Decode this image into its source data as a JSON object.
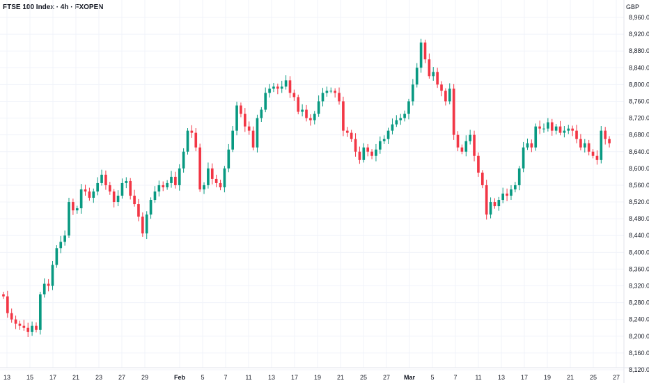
{
  "header": {
    "title": "FTSE 100 Index · 4h · FXOPEN",
    "currency": "GBP"
  },
  "colors": {
    "up": "#089981",
    "down": "#f23645",
    "grid": "#f0f3fa",
    "text": "#131722",
    "axis": "#e0e3eb"
  },
  "chart_data": {
    "type": "candlestick",
    "title": "FTSE 100 Index · 4h · FXOPEN",
    "y_unit": "GBP",
    "y_range": [
      8120,
      8960
    ],
    "y_ticks": [
      "8,960.0",
      "8,920.0",
      "8,880.0",
      "8,840.0",
      "8,800.0",
      "8,760.0",
      "8,720.0",
      "8,680.0",
      "8,640.0",
      "8,600.0",
      "8,560.0",
      "8,520.0",
      "8,480.0",
      "8,440.0",
      "8,400.0",
      "8,360.0",
      "8,320.0",
      "8,280.0",
      "8,240.0",
      "8,200.0",
      "8,160.0",
      "8,120.0"
    ],
    "x_ticks": [
      "13",
      "15",
      "17",
      "21",
      "23",
      "27",
      "29",
      "Feb",
      "5",
      "7",
      "11",
      "13",
      "17",
      "19",
      "21",
      "25",
      "27",
      "Mar",
      "5",
      "7",
      "11",
      "13",
      "17",
      "19",
      "21",
      "25",
      "27"
    ],
    "closes": [
      8295,
      8255,
      8240,
      8230,
      8225,
      8220,
      8210,
      8225,
      8215,
      8300,
      8325,
      8320,
      8370,
      8410,
      8425,
      8440,
      8520,
      8500,
      8505,
      8550,
      8545,
      8530,
      8545,
      8565,
      8585,
      8560,
      8545,
      8520,
      8535,
      8565,
      8570,
      8535,
      8515,
      8485,
      8445,
      8490,
      8525,
      8545,
      8560,
      8555,
      8565,
      8580,
      8560,
      8600,
      8640,
      8690,
      8685,
      8650,
      8550,
      8560,
      8600,
      8575,
      8565,
      8555,
      8600,
      8645,
      8690,
      8750,
      8730,
      8700,
      8690,
      8650,
      8720,
      8740,
      8780,
      8790,
      8795,
      8790,
      8795,
      8810,
      8780,
      8770,
      8735,
      8740,
      8720,
      8715,
      8730,
      8760,
      8780,
      8785,
      8785,
      8780,
      8760,
      8690,
      8685,
      8670,
      8640,
      8620,
      8650,
      8640,
      8630,
      8645,
      8665,
      8670,
      8690,
      8705,
      8715,
      8720,
      8730,
      8760,
      8800,
      8840,
      8900,
      8860,
      8820,
      8830,
      8800,
      8785,
      8760,
      8790,
      8680,
      8650,
      8640,
      8665,
      8680,
      8630,
      8590,
      8560,
      8490,
      8520,
      8510,
      8525,
      8540,
      8535,
      8550,
      8560,
      8600,
      8650,
      8660,
      8650,
      8700,
      8695,
      8695,
      8710,
      8690,
      8700,
      8685,
      8690,
      8695,
      8690,
      8670,
      8650,
      8660,
      8640,
      8630,
      8620,
      8690,
      8670,
      8660
    ]
  }
}
